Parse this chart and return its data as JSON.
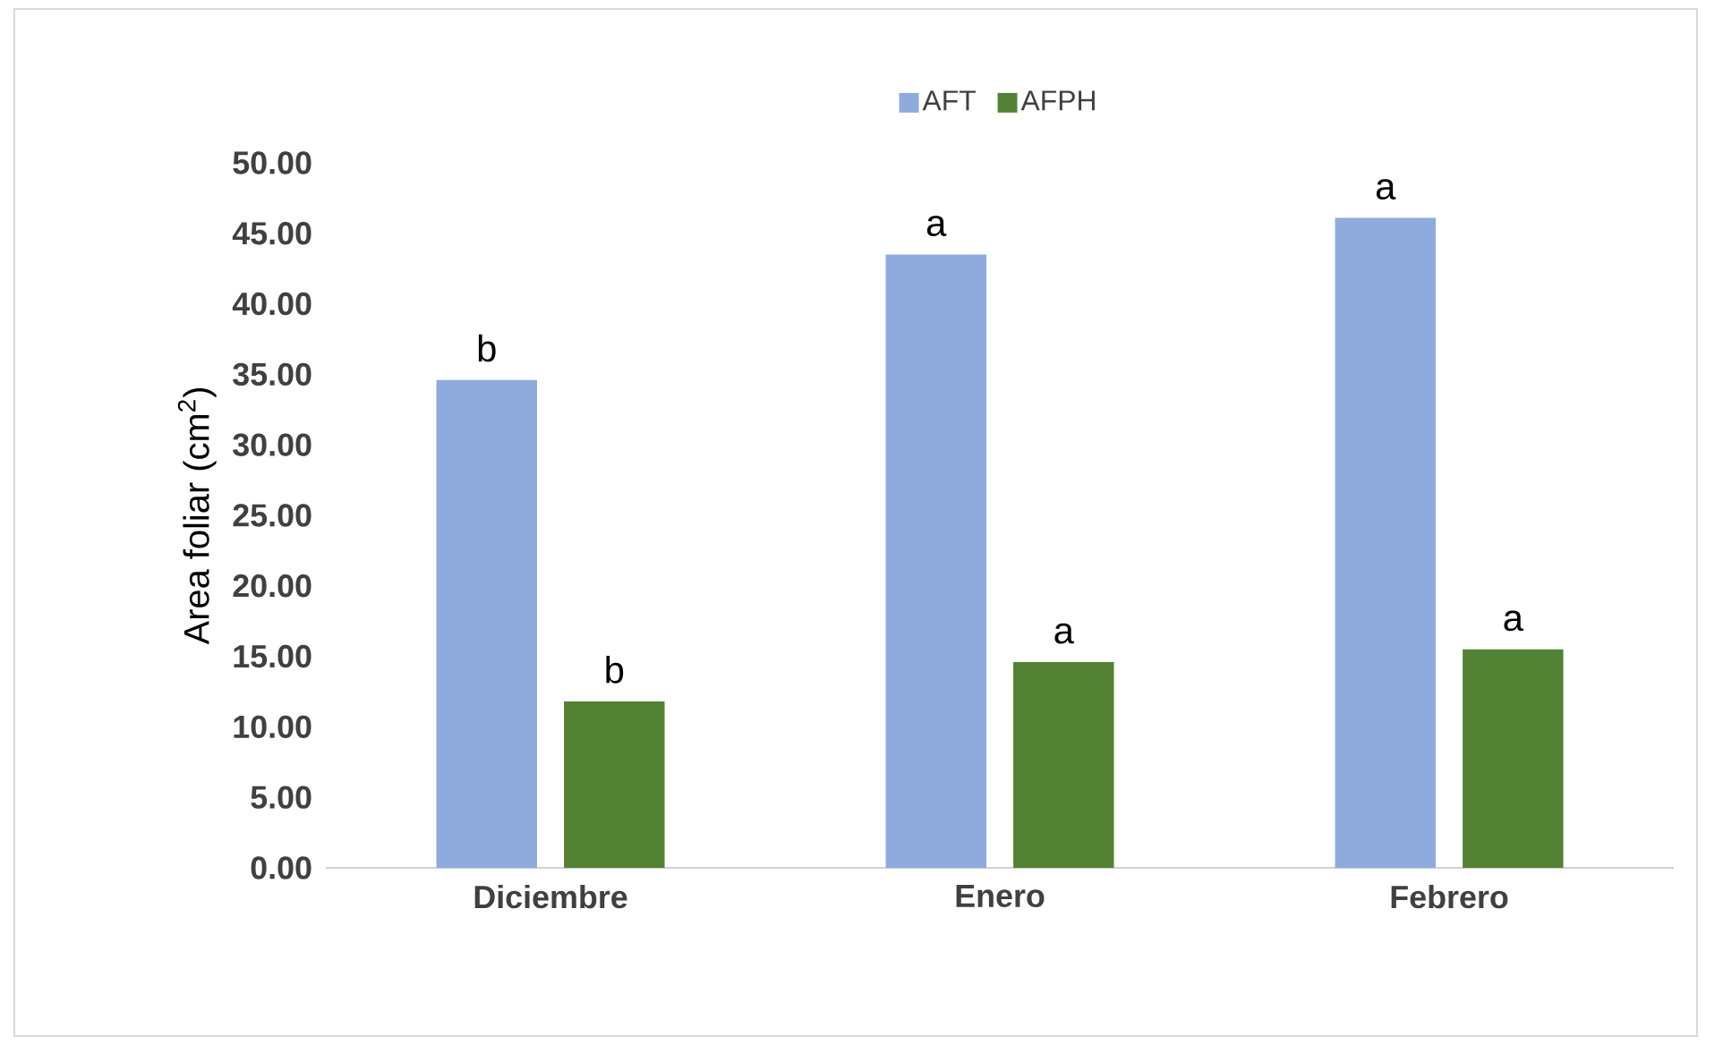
{
  "chart_data": {
    "type": "bar",
    "ylabel": "Area foliar (cm$^{2}$)",
    "categories": [
      "Diciembre",
      "Enero",
      "Febrero"
    ],
    "series": [
      {
        "name": "AFT",
        "color": "#8faadc",
        "values": [
          34.6,
          43.5,
          46.1
        ]
      },
      {
        "name": "AFPH",
        "color": "#548235",
        "values": [
          11.8,
          14.6,
          15.5
        ]
      }
    ],
    "ylim": [
      0,
      50
    ],
    "yticks": [
      {
        "value": 0,
        "label": "0.00"
      },
      {
        "value": 5,
        "label": "5.00"
      },
      {
        "value": 10,
        "label": "10.00"
      },
      {
        "value": 15,
        "label": "15.00"
      },
      {
        "value": 20,
        "label": "20.00"
      },
      {
        "value": 25,
        "label": "25.00"
      },
      {
        "value": 30,
        "label": "30.00"
      },
      {
        "value": 35,
        "label": "35.00"
      },
      {
        "value": 40,
        "label": "40.00"
      },
      {
        "value": 45,
        "label": "45.00"
      },
      {
        "value": 50,
        "label": "50.00"
      }
    ],
    "legend": "top",
    "grid": false,
    "annotations": [
      "b",
      "b",
      "a",
      "a",
      "a",
      "a"
    ]
  }
}
